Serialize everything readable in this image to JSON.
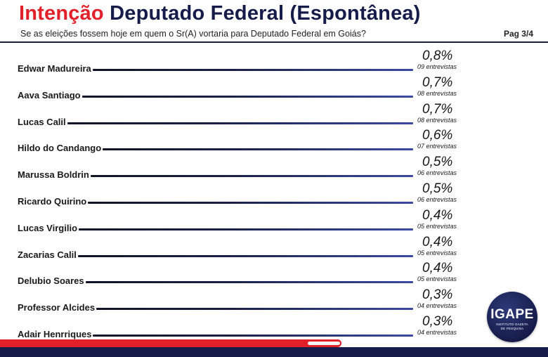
{
  "header": {
    "title_highlight": "Intenção",
    "title_rest": "Deputado Federal (Espontânea)",
    "subtitle": "Se as eleições fossem hoje em quem o Sr(A) vortaria para Deputado Federal em Goiás?",
    "page": "Pag 3/4"
  },
  "chart_data": {
    "type": "bar",
    "categories": [
      "Edwar Madureira",
      "Aava Santiago",
      "Lucas Calil",
      "Hildo do Candango",
      "Marussa Boldrin",
      "Ricardo Quirino",
      "Lucas Virgilio",
      "Zacarias Calil",
      "Delubio Soares",
      "Professor Alcides",
      "Adair Henrriques"
    ],
    "values": [
      0.8,
      0.7,
      0.7,
      0.6,
      0.5,
      0.5,
      0.4,
      0.4,
      0.4,
      0.3,
      0.3
    ],
    "value_labels": [
      "0,8%",
      "0,7%",
      "0,7%",
      "0,6%",
      "0,5%",
      "0,5%",
      "0,4%",
      "0,4%",
      "0,4%",
      "0,3%",
      "0,3%"
    ],
    "counts": [
      9,
      8,
      8,
      7,
      6,
      6,
      5,
      5,
      5,
      4,
      4
    ],
    "count_labels": [
      "09 entrevistas",
      "08 entrevistas",
      "08 entrevistas",
      "07 entrevistas",
      "06 entrevistas",
      "06 entrevistas",
      "05 entrevistas",
      "05 entrevistas",
      "05 entrevistas",
      "04 entrevistas",
      "04 entrevistas"
    ],
    "colors": {
      "title_accent": "#e2202a",
      "title_main": "#161c4a",
      "line_dark": "#111426",
      "line_light": "#3a4aa3"
    }
  },
  "logo": {
    "word": "IGAPE",
    "line1": "INSTITUTO GAZETA",
    "line2": "DE PESQUISA"
  }
}
